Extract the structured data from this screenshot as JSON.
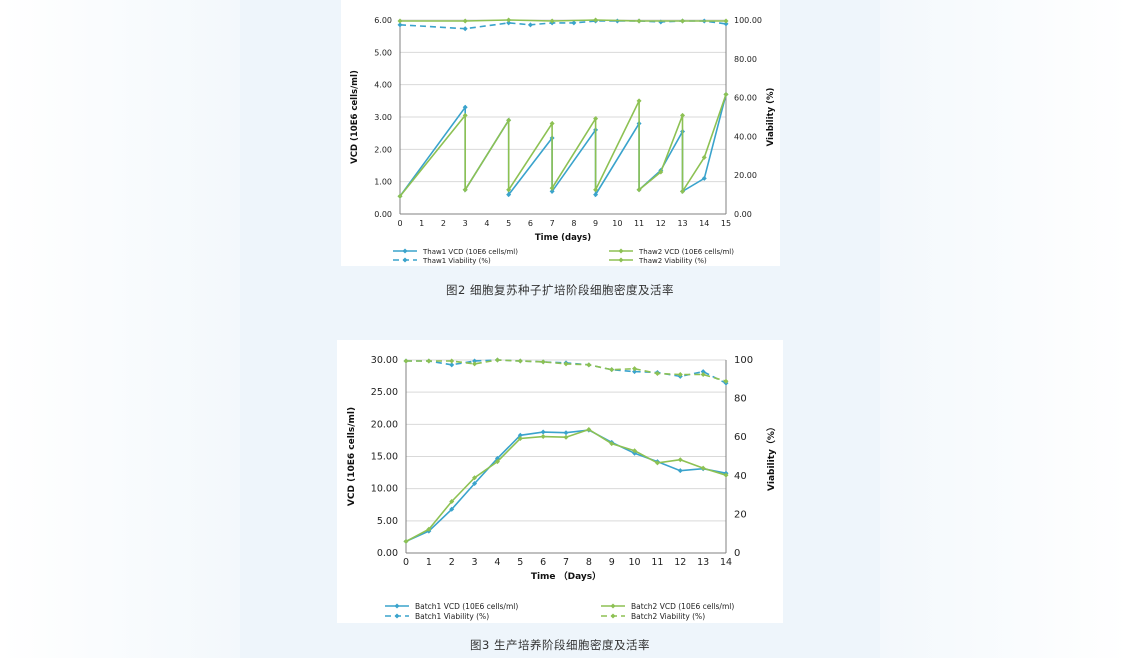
{
  "colors": {
    "blue": "#3aa3cc",
    "green": "#8dc153",
    "grid": "#d9d9d9",
    "axis": "#808080"
  },
  "captions": {
    "fig2": "图2  细胞复苏种子扩培阶段细胞密度及活率",
    "fig3": "图3  生产培养阶段细胞密度及活率"
  },
  "chart_data": [
    {
      "type": "line",
      "id": "fig2",
      "xlabel": "Time (days)",
      "ylabel": "VCD (10E6 cells/ml)",
      "y2label": "Viability  (%)",
      "xlim": [
        0,
        15
      ],
      "ylim": [
        0,
        6
      ],
      "y2lim": [
        0,
        100
      ],
      "xticks": [
        "0",
        "1",
        "2",
        "3",
        "4",
        "5",
        "6",
        "7",
        "8",
        "9",
        "10",
        "11",
        "12",
        "13",
        "14",
        "15"
      ],
      "yticks": [
        "0.00",
        "1.00",
        "2.00",
        "3.00",
        "4.00",
        "5.00",
        "6.00"
      ],
      "y2ticks": [
        "0.00",
        "20.00",
        "40.00",
        "60.00",
        "80.00",
        "100.00"
      ],
      "legend": [
        {
          "label": "Thaw1 VCD  (10E6 cells/ml)",
          "color": "blue",
          "dashed": false
        },
        {
          "label": "Thaw2 VCD  (10E6 cells/ml)",
          "color": "green",
          "dashed": false
        },
        {
          "label": "Thaw1 Viability (%)",
          "color": "blue",
          "dashed": true
        },
        {
          "label": "Thaw2 Viability (%)",
          "color": "green",
          "dashed": false
        }
      ],
      "series": [
        {
          "name": "Thaw1 VCD",
          "axis": "left",
          "color": "blue",
          "dashed": false,
          "x": [
            0,
            3,
            3,
            5,
            5,
            7,
            7,
            9,
            9,
            11,
            11,
            12,
            13,
            13,
            14,
            15
          ],
          "y": [
            0.55,
            3.3,
            0.75,
            2.9,
            0.6,
            2.35,
            0.7,
            2.6,
            0.6,
            2.8,
            0.75,
            1.35,
            2.55,
            0.7,
            1.1,
            3.7
          ]
        },
        {
          "name": "Thaw2 VCD",
          "axis": "left",
          "color": "green",
          "dashed": false,
          "x": [
            0,
            3,
            3,
            5,
            5,
            7,
            7,
            9,
            9,
            11,
            11,
            12,
            13,
            13,
            14,
            15
          ],
          "y": [
            0.55,
            3.05,
            0.75,
            2.9,
            0.75,
            2.8,
            0.8,
            2.95,
            0.75,
            3.5,
            0.75,
            1.3,
            3.05,
            0.7,
            1.75,
            3.7
          ]
        },
        {
          "name": "Thaw1 Viability",
          "axis": "right",
          "color": "blue",
          "dashed": true,
          "x": [
            0,
            3,
            5,
            6,
            7,
            8,
            9,
            10,
            11,
            12,
            13,
            14,
            15
          ],
          "y": [
            97.5,
            95.5,
            98.5,
            97.5,
            98.5,
            98.5,
            99.5,
            99.5,
            99.5,
            99,
            99.5,
            99.5,
            98
          ]
        },
        {
          "name": "Thaw2 Viability",
          "axis": "right",
          "color": "green",
          "dashed": false,
          "x": [
            0,
            3,
            5,
            7,
            9,
            11,
            13,
            15
          ],
          "y": [
            99.5,
            99.5,
            100,
            99.5,
            100,
            99.5,
            99.5,
            99.5
          ]
        }
      ]
    },
    {
      "type": "line",
      "id": "fig3",
      "xlabel": "Time  （Days）",
      "ylabel": "VCD (10E6 cells/ml)",
      "y2label": "Viability（%）",
      "xlim": [
        0,
        14
      ],
      "ylim": [
        0,
        30
      ],
      "y2lim": [
        0,
        100
      ],
      "xticks": [
        "0",
        "1",
        "2",
        "3",
        "4",
        "5",
        "6",
        "7",
        "8",
        "9",
        "10",
        "11",
        "12",
        "13",
        "14"
      ],
      "yticks": [
        "0.00",
        "5.00",
        "10.00",
        "15.00",
        "20.00",
        "25.00",
        "30.00"
      ],
      "y2ticks": [
        "0",
        "20",
        "40",
        "60",
        "80",
        "100"
      ],
      "legend": [
        {
          "label": "Batch1  VCD (10E6 cells/ml)",
          "color": "blue",
          "dashed": false
        },
        {
          "label": "Batch2  VCD (10E6 cells/ml)",
          "color": "green",
          "dashed": false
        },
        {
          "label": "Batch1  Viability (%)",
          "color": "blue",
          "dashed": true
        },
        {
          "label": "Batch2  Viability (%)",
          "color": "green",
          "dashed": true
        }
      ],
      "series": [
        {
          "name": "Batch1 VCD",
          "axis": "left",
          "color": "blue",
          "dashed": false,
          "x": [
            0,
            1,
            2,
            3,
            4,
            5,
            6,
            7,
            8,
            9,
            10,
            11,
            12,
            13,
            14
          ],
          "y": [
            1.8,
            3.4,
            6.8,
            10.8,
            14.7,
            18.3,
            18.8,
            18.7,
            19.1,
            17.2,
            15.5,
            14.2,
            12.8,
            13.1,
            12.4
          ]
        },
        {
          "name": "Batch2 VCD",
          "axis": "left",
          "color": "green",
          "dashed": false,
          "x": [
            0,
            1,
            2,
            3,
            4,
            5,
            6,
            7,
            8,
            9,
            10,
            11,
            12,
            13,
            14
          ],
          "y": [
            1.8,
            3.7,
            8.0,
            11.7,
            14.2,
            17.8,
            18.1,
            18.0,
            19.2,
            17.0,
            15.9,
            14.0,
            14.5,
            13.2,
            12.1
          ]
        },
        {
          "name": "Batch1 Viability",
          "axis": "right",
          "color": "blue",
          "dashed": true,
          "x": [
            0,
            1,
            2,
            3,
            4,
            5,
            6,
            7,
            8,
            9,
            10,
            11,
            12,
            13,
            14
          ],
          "y": [
            99.5,
            99.5,
            97.5,
            99.5,
            100,
            99.5,
            99,
            98.5,
            97.5,
            95,
            94,
            93.5,
            91.5,
            94,
            88
          ]
        },
        {
          "name": "Batch2 Viability",
          "axis": "right",
          "color": "green",
          "dashed": true,
          "x": [
            0,
            1,
            2,
            3,
            4,
            5,
            6,
            7,
            8,
            9,
            10,
            11,
            12,
            13,
            14
          ],
          "y": [
            99.5,
            99.5,
            99.5,
            98,
            100,
            99.5,
            99,
            98,
            97.5,
            95,
            95.5,
            93,
            92.5,
            92.5,
            89
          ]
        }
      ]
    }
  ]
}
